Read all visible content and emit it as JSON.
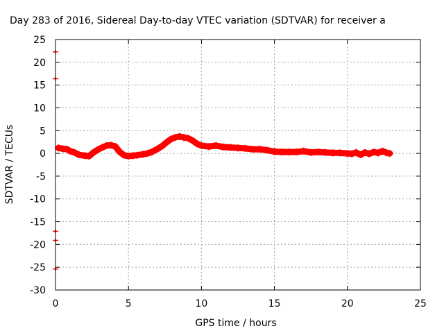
{
  "chart_data": {
    "type": "scatter",
    "title": "Day 283 of 2016, Sidereal Day-to-day VTEC variation (SDTVAR) for receiver a",
    "xlabel": "GPS time / hours",
    "ylabel": "SDTVAR / TECUs",
    "xlim": [
      0,
      25
    ],
    "ylim": [
      -30,
      25
    ],
    "xticks": [
      0,
      5,
      10,
      15,
      20,
      25
    ],
    "yticks": [
      25,
      20,
      15,
      10,
      5,
      0,
      -5,
      -10,
      -15,
      -20,
      -25,
      -30
    ],
    "grid": true,
    "color": "#ff0000",
    "series": [
      {
        "name": "SDTVAR",
        "x": [
          0.2,
          0.5,
          0.8,
          1.0,
          1.3,
          1.6,
          2.0,
          2.3,
          2.6,
          2.9,
          3.2,
          3.5,
          3.8,
          4.1,
          4.4,
          4.7,
          5.0,
          5.3,
          5.6,
          6.0,
          6.3,
          6.6,
          7.0,
          7.3,
          7.6,
          7.9,
          8.2,
          8.5,
          8.8,
          9.1,
          9.4,
          9.7,
          10.0,
          10.5,
          11.0,
          11.5,
          12.0,
          12.5,
          13.0,
          13.5,
          14.0,
          14.5,
          15.0,
          15.5,
          16.0,
          16.5,
          17.0,
          17.5,
          18.0,
          18.5,
          19.0,
          19.5,
          20.0,
          20.3,
          20.6,
          20.9,
          21.2,
          21.5,
          21.8,
          22.1,
          22.4,
          22.7,
          22.9
        ],
        "y": [
          1.2,
          1.0,
          0.9,
          0.5,
          0.2,
          -0.3,
          -0.5,
          -0.6,
          0.2,
          0.8,
          1.3,
          1.7,
          1.8,
          1.5,
          0.3,
          -0.4,
          -0.6,
          -0.5,
          -0.4,
          -0.2,
          0.0,
          0.3,
          1.0,
          1.6,
          2.4,
          3.1,
          3.5,
          3.7,
          3.5,
          3.3,
          2.8,
          2.1,
          1.7,
          1.5,
          1.7,
          1.4,
          1.3,
          1.2,
          1.1,
          0.9,
          0.9,
          0.7,
          0.4,
          0.3,
          0.3,
          0.3,
          0.5,
          0.2,
          0.3,
          0.2,
          0.1,
          0.1,
          0.0,
          -0.1,
          0.2,
          -0.3,
          0.2,
          -0.1,
          0.3,
          0.1,
          0.5,
          0.1,
          0.0
        ]
      }
    ],
    "outliers": {
      "x": [
        0.0,
        0.0,
        0.0,
        0.0,
        0.0
      ],
      "y": [
        22.3,
        16.4,
        -17.1,
        -19.1,
        -25.4
      ]
    }
  }
}
